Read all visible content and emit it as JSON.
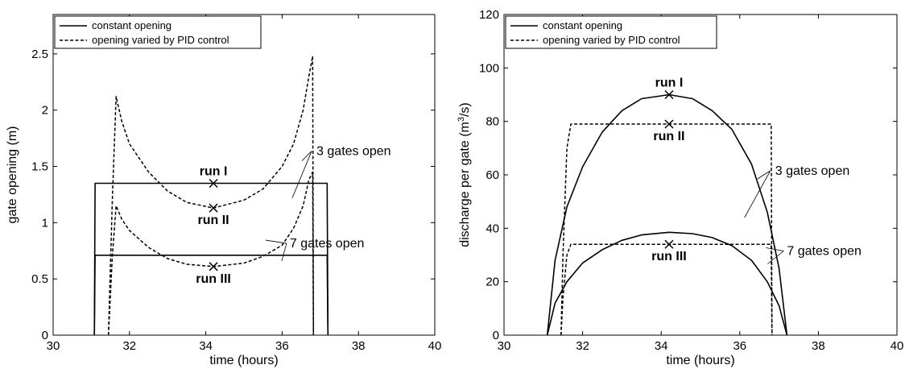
{
  "chart_data": [
    {
      "type": "line",
      "xlabel": "time (hours)",
      "ylabel": "gate opening (m)",
      "xlim": [
        30,
        40
      ],
      "ylim": [
        0,
        2.85
      ],
      "xticks": [
        "30",
        "32",
        "34",
        "36",
        "38",
        "40"
      ],
      "yticks": [
        "0",
        "0.5",
        "1",
        "1.5",
        "2",
        "2.5"
      ],
      "grid": false,
      "legend_position": "top-left",
      "legend": [
        "constant opening",
        "opening varied by PID control"
      ],
      "series": [
        {
          "name": "constant opening",
          "group": "3 gates open",
          "style": "solid",
          "x": [
            31.08,
            31.1,
            37.18,
            37.2
          ],
          "y": [
            0,
            1.35,
            1.35,
            0
          ]
        },
        {
          "name": "opening varied by PID control",
          "group": "3 gates open",
          "style": "dashed",
          "x": [
            31.45,
            31.55,
            31.65,
            31.8,
            32.0,
            32.5,
            33.0,
            33.5,
            34.2,
            35.0,
            35.5,
            36.0,
            36.3,
            36.55,
            36.7,
            36.8,
            36.82
          ],
          "y": [
            0,
            1.2,
            2.12,
            1.9,
            1.7,
            1.45,
            1.28,
            1.18,
            1.13,
            1.2,
            1.3,
            1.5,
            1.7,
            2.0,
            2.3,
            2.48,
            0
          ]
        },
        {
          "name": "constant opening",
          "group": "7 gates open",
          "style": "solid",
          "x": [
            31.08,
            31.1,
            37.18,
            37.2
          ],
          "y": [
            0,
            0.71,
            0.71,
            0
          ]
        },
        {
          "name": "opening varied by PID control",
          "group": "7 gates open",
          "style": "dashed",
          "x": [
            31.45,
            31.55,
            31.65,
            31.8,
            32.0,
            32.5,
            33.0,
            33.5,
            34.2,
            35.0,
            35.5,
            36.0,
            36.3,
            36.55,
            36.7,
            36.8,
            36.82
          ],
          "y": [
            0,
            0.7,
            1.15,
            1.03,
            0.93,
            0.78,
            0.68,
            0.63,
            0.61,
            0.64,
            0.7,
            0.8,
            0.95,
            1.15,
            1.38,
            1.45,
            0
          ]
        }
      ],
      "markers": [
        {
          "label": "run I",
          "x": 34.2,
          "y": 1.35,
          "label_side": "above"
        },
        {
          "label": "run II",
          "x": 34.2,
          "y": 1.13,
          "label_side": "below"
        },
        {
          "label": "run III",
          "x": 34.2,
          "y": 0.61,
          "label_side": "below"
        }
      ],
      "annotations": [
        {
          "text": "3 gates open",
          "x": 36.9,
          "y": 1.6
        },
        {
          "text": "7 gates open",
          "x": 36.2,
          "y": 0.78
        }
      ]
    },
    {
      "type": "line",
      "xlabel": "time (hours)",
      "ylabel": "discharge per gate (m",
      "ylabel_superscript": "3",
      "ylabel_suffix": "/s)",
      "xlim": [
        30,
        40
      ],
      "ylim": [
        0,
        120
      ],
      "xticks": [
        "30",
        "32",
        "34",
        "36",
        "38",
        "40"
      ],
      "yticks": [
        "0",
        "20",
        "40",
        "60",
        "80",
        "100",
        "120"
      ],
      "grid": false,
      "legend_position": "top-left",
      "legend": [
        "constant opening",
        "opening varied by PID control"
      ],
      "series": [
        {
          "name": "constant opening",
          "group": "3 gates open",
          "style": "solid",
          "x": [
            31.1,
            31.3,
            31.6,
            32.0,
            32.5,
            33.0,
            33.5,
            34.2,
            34.8,
            35.3,
            35.8,
            36.3,
            36.7,
            37.0,
            37.2
          ],
          "y": [
            0,
            28,
            48,
            63,
            76,
            84,
            88.5,
            90,
            88.5,
            84,
            77,
            64,
            46,
            25,
            0
          ]
        },
        {
          "name": "opening varied by PID control",
          "group": "3 gates open",
          "style": "dashed",
          "x": [
            31.45,
            31.5,
            31.6,
            31.7,
            36.8,
            36.82
          ],
          "y": [
            0,
            30,
            70,
            79,
            79,
            0
          ]
        },
        {
          "name": "constant opening",
          "group": "7 gates open",
          "style": "solid",
          "x": [
            31.1,
            31.3,
            31.6,
            32.0,
            32.5,
            33.0,
            33.5,
            34.2,
            34.8,
            35.3,
            35.8,
            36.3,
            36.7,
            37.0,
            37.2
          ],
          "y": [
            0,
            12,
            20,
            27,
            32,
            35.5,
            37.5,
            38.5,
            38,
            36.5,
            33.5,
            28,
            20,
            11,
            0
          ]
        },
        {
          "name": "opening varied by PID control",
          "group": "7 gates open",
          "style": "dashed",
          "x": [
            31.45,
            31.5,
            31.6,
            31.7,
            36.8,
            36.82
          ],
          "y": [
            0,
            14,
            30,
            34,
            34,
            0
          ]
        }
      ],
      "markers": [
        {
          "label": "run I",
          "x": 34.2,
          "y": 90,
          "label_side": "above"
        },
        {
          "label": "run II",
          "x": 34.2,
          "y": 79,
          "label_side": "below"
        },
        {
          "label": "run III",
          "x": 34.2,
          "y": 34,
          "label_side": "below"
        }
      ],
      "annotations": [
        {
          "text": "3 gates open",
          "x": 36.9,
          "y": 60
        },
        {
          "text": "7 gates open",
          "x": 37.2,
          "y": 30
        }
      ]
    }
  ]
}
